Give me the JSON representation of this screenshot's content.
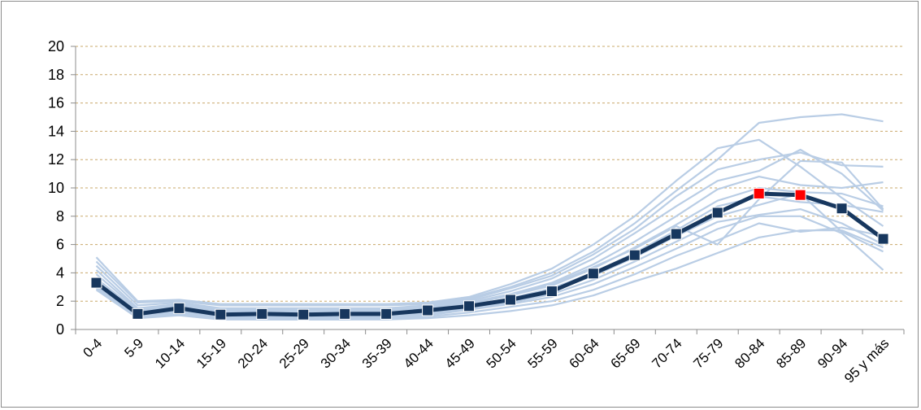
{
  "chart_data": {
    "type": "line",
    "title": "",
    "xlabel": "",
    "ylabel": "",
    "ylim": [
      0,
      20
    ],
    "yticks": [
      0,
      2,
      4,
      6,
      8,
      10,
      12,
      14,
      16,
      18,
      20
    ],
    "grid": true,
    "legend": "none",
    "categories": [
      "0-4",
      "5-9",
      "10-14",
      "15-19",
      "20-24",
      "25-29",
      "30-34",
      "35-39",
      "40-44",
      "45-49",
      "50-54",
      "55-59",
      "60-64",
      "65-69",
      "70-74",
      "75-79",
      "80-84",
      "85-89",
      "90-94",
      "95 y más"
    ],
    "main_series": {
      "values": [
        3.3,
        1.1,
        1.5,
        1.05,
        1.1,
        1.05,
        1.1,
        1.1,
        1.35,
        1.65,
        2.1,
        2.7,
        3.95,
        5.25,
        6.75,
        8.25,
        9.6,
        9.5,
        8.55,
        6.4
      ],
      "highlighted_indices": [
        16,
        17
      ],
      "color": "#17375e",
      "highlight_color": "#ff0000"
    },
    "background_series_color": "#b9cde5",
    "background_series": [
      {
        "values": [
          5.1,
          2.0,
          2.1,
          1.8,
          1.8,
          1.8,
          1.8,
          1.8,
          1.9,
          2.3,
          3.2,
          4.3,
          6.0,
          8.0,
          10.5,
          12.8,
          13.4,
          11.5,
          9.3,
          7.3
        ]
      },
      {
        "values": [
          4.8,
          1.9,
          2.0,
          1.7,
          1.7,
          1.7,
          1.7,
          1.7,
          1.8,
          2.2,
          3.0,
          4.0,
          5.5,
          7.5,
          9.8,
          12.0,
          14.6,
          15.0,
          15.2,
          14.7
        ]
      },
      {
        "values": [
          4.5,
          1.7,
          1.9,
          1.5,
          1.5,
          1.5,
          1.5,
          1.5,
          1.7,
          2.1,
          2.9,
          3.8,
          5.3,
          7.1,
          9.4,
          11.3,
          12.0,
          12.5,
          11.6,
          11.5
        ]
      },
      {
        "values": [
          4.2,
          1.5,
          1.8,
          1.4,
          1.4,
          1.4,
          1.4,
          1.4,
          1.6,
          2.0,
          2.7,
          3.6,
          5.0,
          6.8,
          8.7,
          10.5,
          11.2,
          12.7,
          11.0,
          8.4
        ]
      },
      {
        "values": [
          3.9,
          1.4,
          1.7,
          1.3,
          1.3,
          1.3,
          1.3,
          1.3,
          1.5,
          1.9,
          2.5,
          3.3,
          4.6,
          6.2,
          8.0,
          9.9,
          10.8,
          10.2,
          10.0,
          10.4
        ]
      },
      {
        "values": [
          3.6,
          1.3,
          1.6,
          1.2,
          1.2,
          1.2,
          1.2,
          1.2,
          1.4,
          1.8,
          2.4,
          3.1,
          4.3,
          5.8,
          7.4,
          9.1,
          10.0,
          9.7,
          9.6,
          8.7
        ]
      },
      {
        "values": [
          3.3,
          1.2,
          1.5,
          1.1,
          1.1,
          1.1,
          1.1,
          1.1,
          1.3,
          1.7,
          2.2,
          2.9,
          4.0,
          5.4,
          7.0,
          8.7,
          9.4,
          9.0,
          8.8,
          8.3
        ]
      },
      {
        "values": [
          3.1,
          1.1,
          1.4,
          1.0,
          1.0,
          1.0,
          1.0,
          1.0,
          1.2,
          1.6,
          2.1,
          2.7,
          3.8,
          5.1,
          6.6,
          8.0,
          8.8,
          9.6,
          6.9,
          5.5
        ]
      },
      {
        "values": [
          3.0,
          1.0,
          1.3,
          0.9,
          0.9,
          0.9,
          0.9,
          0.9,
          1.1,
          1.5,
          1.9,
          2.5,
          3.5,
          4.8,
          6.2,
          7.6,
          8.1,
          8.5,
          7.5,
          6.0
        ]
      },
      {
        "values": [
          2.9,
          0.9,
          1.2,
          0.8,
          0.8,
          0.8,
          0.8,
          0.8,
          1.0,
          1.4,
          1.8,
          2.3,
          3.2,
          4.4,
          5.7,
          7.1,
          8.0,
          8.0,
          6.8,
          4.2
        ]
      },
      {
        "values": [
          3.0,
          0.9,
          1.1,
          0.8,
          0.7,
          0.7,
          0.7,
          0.8,
          0.9,
          1.2,
          1.6,
          2.0,
          2.8,
          3.9,
          5.2,
          6.3,
          7.5,
          6.9,
          7.2,
          6.6
        ]
      },
      {
        "values": [
          2.8,
          0.8,
          1.0,
          0.7,
          0.7,
          0.7,
          0.7,
          0.7,
          0.8,
          1.0,
          1.3,
          1.7,
          2.4,
          3.4,
          4.3,
          5.4,
          6.5,
          7.0,
          7.0,
          5.8
        ]
      },
      {
        "values": [
          3.4,
          1.2,
          1.6,
          1.2,
          1.2,
          1.2,
          1.2,
          1.2,
          1.4,
          1.8,
          2.4,
          3.2,
          4.4,
          5.7,
          7.3,
          6.0,
          9.2,
          11.9,
          11.8,
          8.5
        ]
      }
    ]
  }
}
